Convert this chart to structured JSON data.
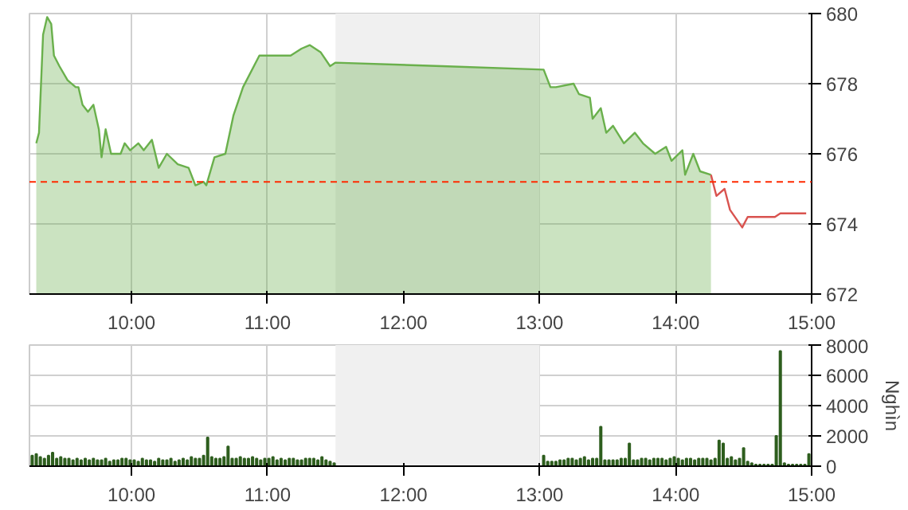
{
  "chart_data": [
    {
      "type": "area",
      "xlim": [
        9.25,
        15
      ],
      "ylim": [
        672,
        680
      ],
      "xticks": [
        {
          "value": 10,
          "label": "10:00"
        },
        {
          "value": 11,
          "label": "11:00"
        },
        {
          "value": 12,
          "label": "12:00"
        },
        {
          "value": 13,
          "label": "13:00"
        },
        {
          "value": 14,
          "label": "14:00"
        },
        {
          "value": 15,
          "label": "15:00"
        }
      ],
      "yticks": [
        672,
        674,
        676,
        678,
        680
      ],
      "grid": true,
      "ref_lines": [
        {
          "axis": "y",
          "value": 675.2,
          "color": "#ff2a00",
          "line_style": "dashed"
        }
      ],
      "bands": [
        {
          "axis": "x",
          "from": 11.5,
          "to": 13,
          "color": "#f0f0f0"
        }
      ],
      "series": [
        {
          "type": "area",
          "color": "#6ab04c",
          "x": [
            9.3,
            9.32,
            9.35,
            9.38,
            9.41,
            9.43,
            9.47,
            9.53,
            9.59,
            9.61,
            9.64,
            9.68,
            9.72,
            9.76,
            9.78,
            9.81,
            9.85,
            9.92,
            9.95,
            9.99,
            10.05,
            10.09,
            10.15,
            10.2,
            10.26,
            10.34,
            10.42,
            10.47,
            10.53,
            10.55,
            10.61,
            10.69,
            10.75,
            10.82,
            10.94,
            11.02,
            11.1,
            11.17,
            11.25,
            11.31,
            11.39,
            11.46,
            11.5,
            12.28,
            13.03,
            13.08,
            13.12,
            13.25,
            13.29,
            13.37,
            13.39,
            13.45,
            13.49,
            13.54,
            13.62,
            13.7,
            13.76,
            13.85,
            13.93,
            13.97,
            14.05,
            14.07,
            14.13,
            14.18,
            14.26
          ],
          "values": [
            676.3,
            676.6,
            679.4,
            679.9,
            679.7,
            678.8,
            678.5,
            678.1,
            677.9,
            677.9,
            677.4,
            677.2,
            677.4,
            676.7,
            675.9,
            676.7,
            676.0,
            676.0,
            676.3,
            676.1,
            676.3,
            676.1,
            676.4,
            675.6,
            676.0,
            675.7,
            675.6,
            675.1,
            675.2,
            675.1,
            675.9,
            676.0,
            677.1,
            677.9,
            678.8,
            678.8,
            678.8,
            678.8,
            679.0,
            679.1,
            678.9,
            678.5,
            678.6,
            678.5,
            678.4,
            677.9,
            677.9,
            678.0,
            677.7,
            677.6,
            677.0,
            677.3,
            676.6,
            676.8,
            676.3,
            676.6,
            676.3,
            676.0,
            676.2,
            675.8,
            676.1,
            675.4,
            676.0,
            675.5,
            675.4
          ]
        },
        {
          "type": "line",
          "color": "#d9534f",
          "x": [
            14.26,
            14.3,
            14.36,
            14.4,
            14.49,
            14.53,
            14.73,
            14.77,
            14.96
          ],
          "values": [
            675.4,
            674.8,
            675.0,
            674.4,
            673.9,
            674.2,
            674.2,
            674.3,
            674.3
          ]
        }
      ]
    },
    {
      "type": "bar",
      "xlim": [
        9.25,
        15
      ],
      "ylim": [
        0,
        8000
      ],
      "ylabel": "Nghìn",
      "xticks": [
        {
          "value": 10,
          "label": "10:00"
        },
        {
          "value": 11,
          "label": "11:00"
        },
        {
          "value": 12,
          "label": "12:00"
        },
        {
          "value": 13,
          "label": "13:00"
        },
        {
          "value": 14,
          "label": "14:00"
        },
        {
          "value": 15,
          "label": "15:00"
        }
      ],
      "yticks": [
        0,
        2000,
        4000,
        6000,
        8000
      ],
      "grid": true,
      "bands": [
        {
          "axis": "x",
          "from": 11.5,
          "to": 13,
          "color": "#f0f0f0"
        }
      ],
      "series": [
        {
          "color": "#2e5e1e",
          "x": [
            9.27,
            9.3,
            9.33,
            9.36,
            9.39,
            9.42,
            9.45,
            9.48,
            9.51,
            9.54,
            9.57,
            9.6,
            9.63,
            9.66,
            9.69,
            9.72,
            9.75,
            9.78,
            9.81,
            9.84,
            9.87,
            9.9,
            9.93,
            9.96,
            9.99,
            10.02,
            10.05,
            10.08,
            10.11,
            10.14,
            10.17,
            10.2,
            10.23,
            10.26,
            10.29,
            10.32,
            10.35,
            10.38,
            10.41,
            10.44,
            10.47,
            10.5,
            10.53,
            10.56,
            10.59,
            10.62,
            10.65,
            10.68,
            10.71,
            10.74,
            10.77,
            10.8,
            10.83,
            10.86,
            10.89,
            10.92,
            10.95,
            10.98,
            11.01,
            11.04,
            11.07,
            11.1,
            11.13,
            11.16,
            11.19,
            11.22,
            11.25,
            11.28,
            11.31,
            11.34,
            11.37,
            11.4,
            11.43,
            11.46,
            11.49,
            13.03,
            13.06,
            13.09,
            13.12,
            13.15,
            13.18,
            13.21,
            13.24,
            13.27,
            13.3,
            13.33,
            13.36,
            13.39,
            13.42,
            13.45,
            13.48,
            13.51,
            13.54,
            13.57,
            13.6,
            13.63,
            13.66,
            13.69,
            13.72,
            13.75,
            13.78,
            13.81,
            13.84,
            13.87,
            13.9,
            13.93,
            13.96,
            13.99,
            14.02,
            14.05,
            14.08,
            14.11,
            14.14,
            14.17,
            14.2,
            14.23,
            14.26,
            14.29,
            14.32,
            14.35,
            14.38,
            14.41,
            14.44,
            14.47,
            14.5,
            14.53,
            14.56,
            14.59,
            14.62,
            14.65,
            14.68,
            14.71,
            14.74,
            14.77,
            14.8,
            14.83,
            14.86,
            14.89,
            14.92,
            14.95,
            14.98
          ],
          "values": [
            700,
            800,
            600,
            500,
            700,
            900,
            500,
            600,
            500,
            500,
            400,
            500,
            400,
            500,
            400,
            500,
            400,
            400,
            500,
            300,
            400,
            400,
            500,
            500,
            400,
            400,
            300,
            500,
            400,
            400,
            300,
            500,
            400,
            400,
            500,
            300,
            400,
            500,
            400,
            600,
            500,
            500,
            700,
            1900,
            600,
            500,
            500,
            600,
            1300,
            500,
            500,
            600,
            500,
            500,
            600,
            500,
            400,
            500,
            500,
            600,
            400,
            500,
            400,
            500,
            500,
            400,
            400,
            500,
            500,
            500,
            400,
            600,
            400,
            300,
            200,
            700,
            300,
            300,
            300,
            400,
            400,
            500,
            500,
            400,
            500,
            600,
            400,
            500,
            500,
            2600,
            400,
            400,
            400,
            400,
            500,
            500,
            1500,
            400,
            400,
            500,
            500,
            400,
            500,
            500,
            500,
            400,
            500,
            600,
            500,
            400,
            500,
            500,
            400,
            500,
            500,
            500,
            400,
            500,
            1700,
            1500,
            500,
            600,
            400,
            500,
            1200,
            300,
            200,
            100,
            100,
            100,
            100,
            100,
            2000,
            7600,
            200,
            100,
            100,
            100,
            100,
            100,
            800
          ]
        }
      ]
    }
  ]
}
